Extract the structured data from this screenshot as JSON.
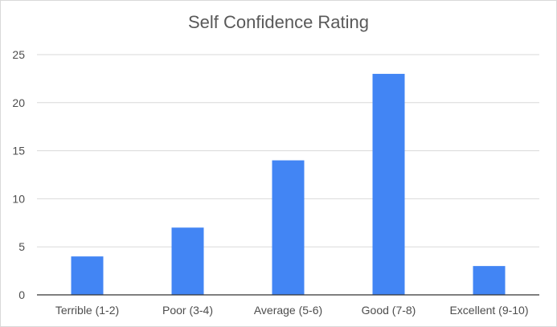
{
  "chart_data": {
    "type": "bar",
    "title": "Self Confidence Rating",
    "xlabel": "",
    "ylabel": "",
    "categories": [
      "Terrible (1-2)",
      "Poor (3-4)",
      "Average (5-6)",
      "Good (7-8)",
      "Excellent (9-10)"
    ],
    "values": [
      4,
      7,
      14,
      23,
      3
    ],
    "ylim": [
      0,
      25
    ],
    "yticks": [
      "0",
      "5",
      "10",
      "15",
      "20",
      "25"
    ],
    "grid": true,
    "legend": "none",
    "bar_color": "#4285f4",
    "grid_color": "#d9d9d9",
    "baseline_color": "#333333"
  }
}
